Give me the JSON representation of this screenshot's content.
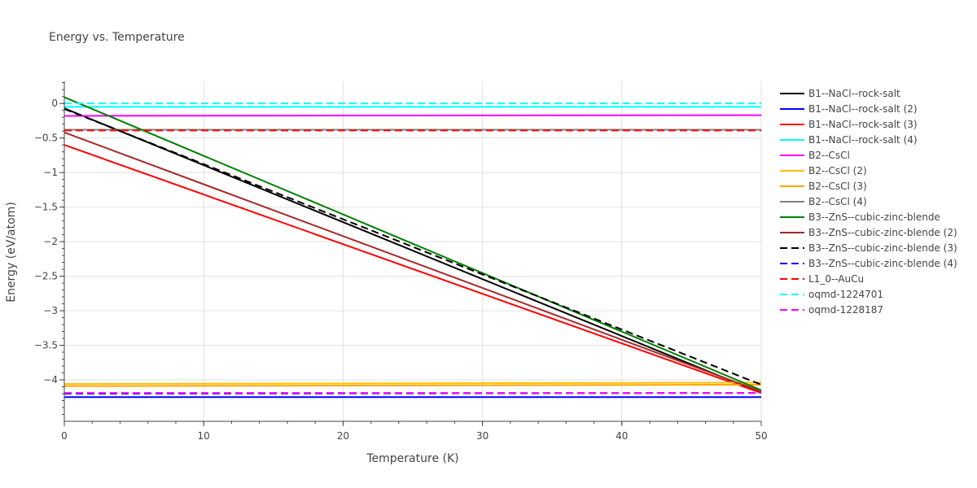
{
  "chart_data": {
    "type": "line",
    "title": "Energy vs. Temperature",
    "xlabel": "Temperature (K)",
    "ylabel": "Energy (eV/atom)",
    "xlim": [
      0,
      50
    ],
    "ylim": [
      -4.6,
      0.32
    ],
    "x_ticks": [
      0,
      10,
      20,
      30,
      40,
      50
    ],
    "x_tick_labels": [
      "0",
      "10",
      "20",
      "30",
      "40",
      "50"
    ],
    "y_ticks": [
      0,
      -0.5,
      -1,
      -1.5,
      -2,
      -2.5,
      -3,
      -3.5,
      -4
    ],
    "y_tick_labels": [
      "0",
      "−0.5",
      "−1",
      "−1.5",
      "−2",
      "−2.5",
      "−3",
      "−3.5",
      "−4"
    ],
    "grid": true,
    "legend_position": "right",
    "series": [
      {
        "name": "B1--NaCl--rock-salt",
        "color": "#000000",
        "dash": "solid",
        "x": [
          0,
          50
        ],
        "y": [
          -0.07,
          -4.19
        ]
      },
      {
        "name": "B1--NaCl--rock-salt (2)",
        "color": "#0000ff",
        "dash": "solid",
        "x": [
          0,
          50
        ],
        "y": [
          -4.25,
          -4.25
        ]
      },
      {
        "name": "B1--NaCl--rock-salt (3)",
        "color": "#ff0000",
        "dash": "solid",
        "x": [
          0,
          50
        ],
        "y": [
          -0.6,
          -4.19
        ]
      },
      {
        "name": "B1--NaCl--rock-salt (4)",
        "color": "#00ffff",
        "dash": "solid",
        "x": [
          0,
          50
        ],
        "y": [
          -0.05,
          -0.05
        ]
      },
      {
        "name": "B2--CsCl",
        "color": "#ff00ff",
        "dash": "solid",
        "x": [
          0,
          50
        ],
        "y": [
          -0.18,
          -0.17
        ]
      },
      {
        "name": "B2--CsCl (2)",
        "color": "#ffc000",
        "dash": "solid",
        "x": [
          0,
          50
        ],
        "y": [
          -4.06,
          -4.04
        ]
      },
      {
        "name": "B2--CsCl (3)",
        "color": "#ffa500",
        "dash": "solid",
        "x": [
          0,
          50
        ],
        "y": [
          -4.09,
          -4.07
        ]
      },
      {
        "name": "B2--CsCl (4)",
        "color": "#808080",
        "dash": "solid",
        "x": [
          0,
          50
        ],
        "y": [
          -0.38,
          -0.38
        ]
      },
      {
        "name": "B3--ZnS--cubic-zinc-blende",
        "color": "#008000",
        "dash": "solid",
        "x": [
          0,
          50
        ],
        "y": [
          0.09,
          -4.15
        ]
      },
      {
        "name": "B3--ZnS--cubic-zinc-blende (2)",
        "color": "#a52a2a",
        "dash": "solid",
        "x": [
          0,
          50
        ],
        "y": [
          -0.42,
          -4.17
        ]
      },
      {
        "name": "B3--ZnS--cubic-zinc-blende (3)",
        "color": "#000000",
        "dash": "dash",
        "x": [
          0,
          50
        ],
        "y": [
          -0.08,
          -4.07
        ]
      },
      {
        "name": "B3--ZnS--cubic-zinc-blende (4)",
        "color": "#0000ff",
        "dash": "dash",
        "x": [
          0,
          50
        ],
        "y": [
          -4.2,
          -4.19
        ]
      },
      {
        "name": "L1_0--AuCu",
        "color": "#ff0000",
        "dash": "dash",
        "x": [
          0,
          50
        ],
        "y": [
          -0.39,
          -0.39
        ]
      },
      {
        "name": "oqmd-1224701",
        "color": "#00ffff",
        "dash": "dash",
        "x": [
          0,
          50
        ],
        "y": [
          0.0,
          0.0
        ]
      },
      {
        "name": "oqmd-1228187",
        "color": "#ff00ff",
        "dash": "dash",
        "x": [
          0,
          50
        ],
        "y": [
          -4.19,
          -4.19
        ]
      }
    ]
  }
}
